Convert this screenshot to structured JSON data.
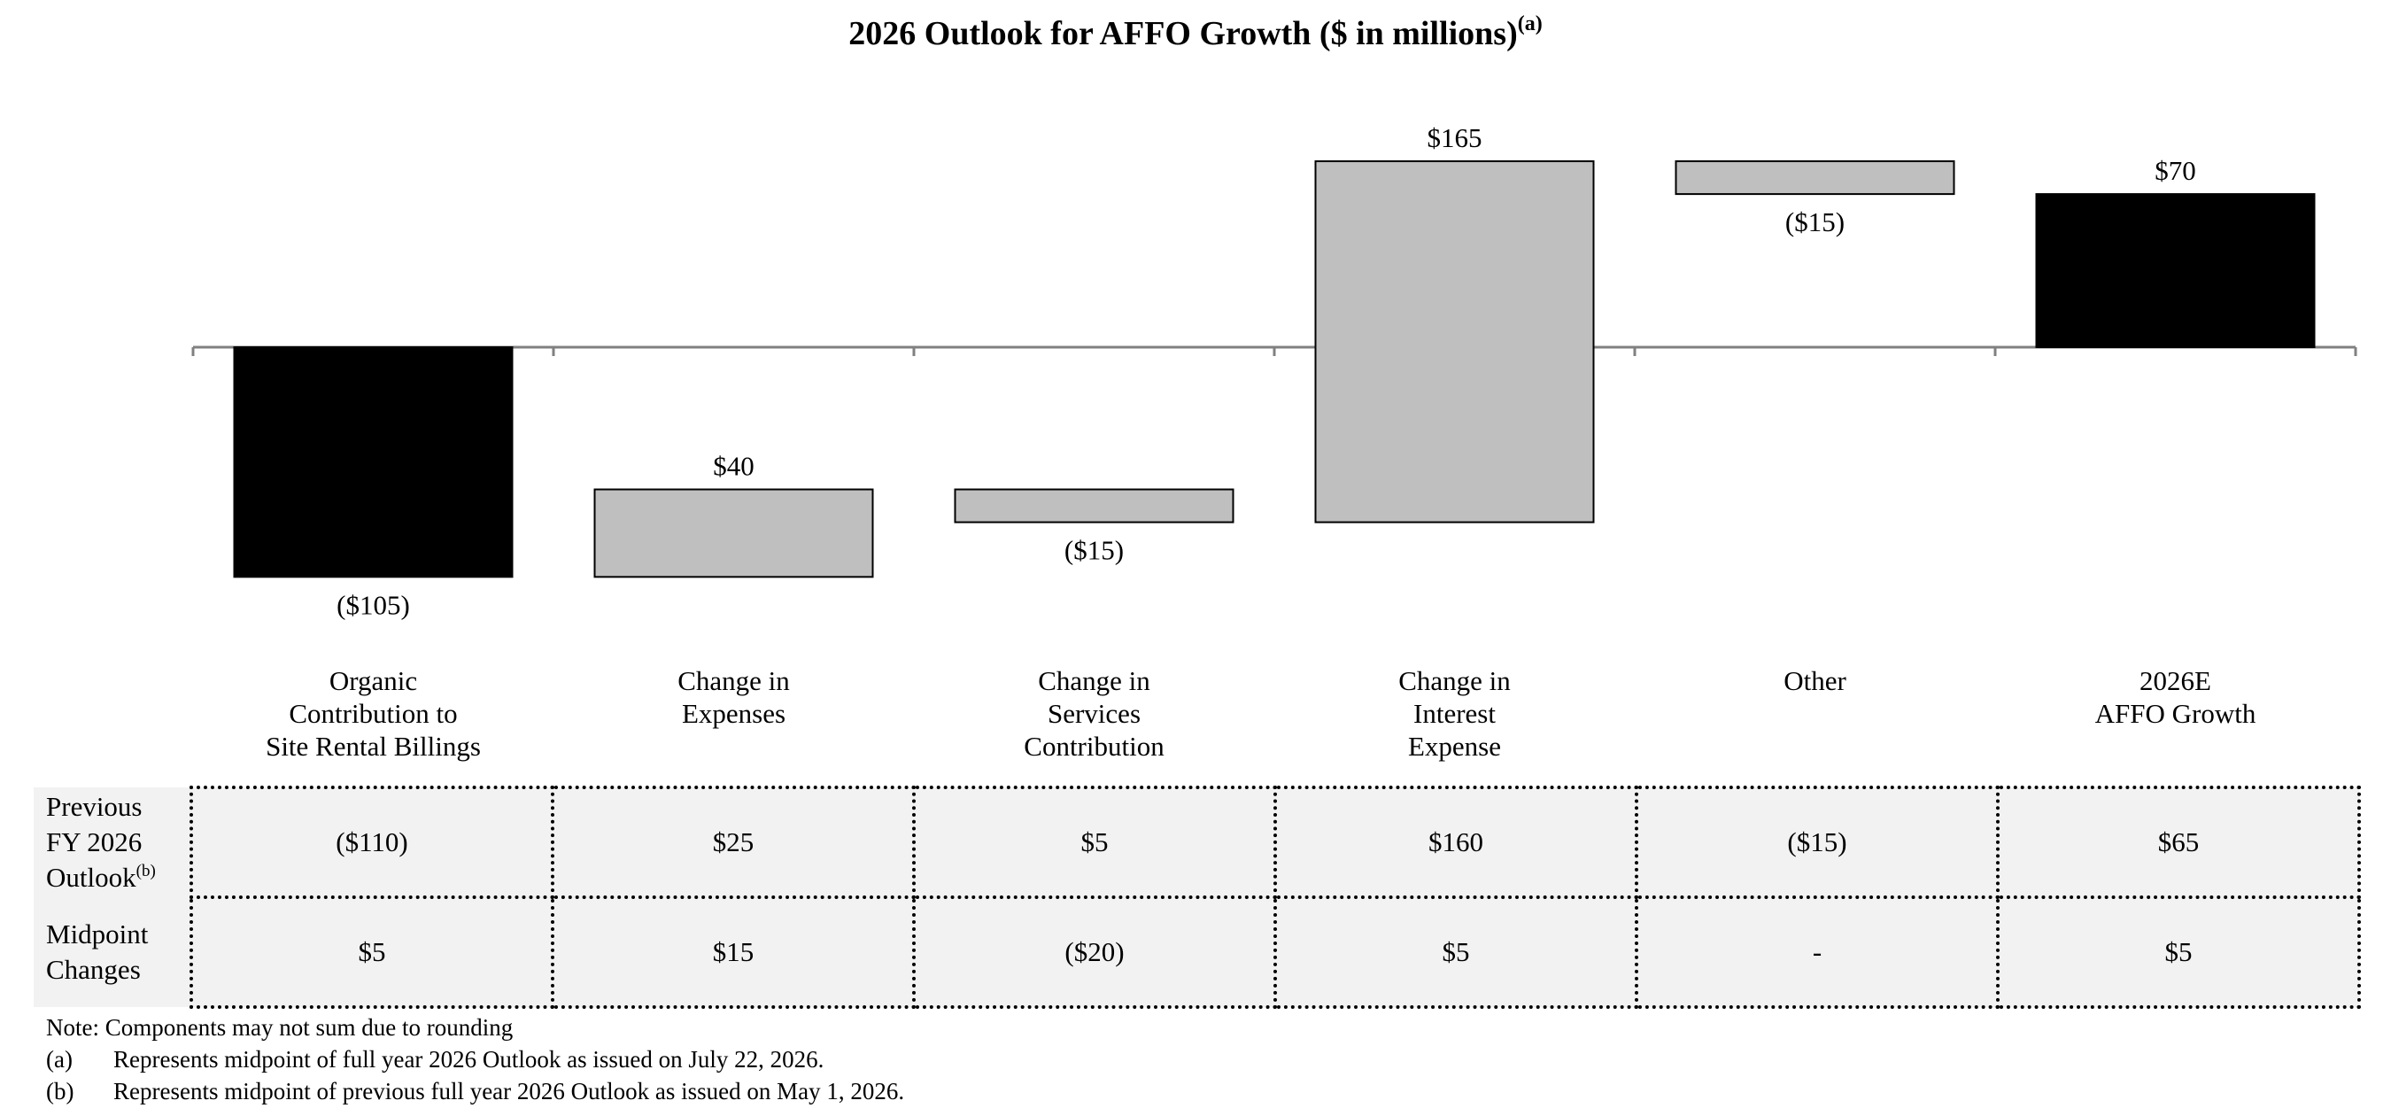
{
  "chart_data": {
    "type": "waterfall",
    "title": "2026 Outlook for AFFO Growth ($ in millions)",
    "title_superscript": "(a)",
    "categories": [
      "Organic\nContribution to\nSite Rental Billings",
      "Change in\nExpenses",
      "Change in\nServices\nContribution",
      "Change in\nInterest\nExpense",
      "Other",
      "2026E\nAFFO Growth"
    ],
    "values": [
      -105,
      40,
      -15,
      165,
      -15,
      70
    ],
    "value_labels": [
      "($105)",
      "$40",
      "($15)",
      "$165",
      "($15)",
      "$70"
    ],
    "bar_kinds": [
      "total",
      "delta",
      "delta",
      "delta",
      "delta",
      "total"
    ],
    "bar_ranges": [
      [
        -105,
        0
      ],
      [
        -105,
        -65
      ],
      [
        -80,
        -65
      ],
      [
        -80,
        85
      ],
      [
        70,
        85
      ],
      [
        0,
        70
      ]
    ],
    "colors": {
      "total": "#000000",
      "delta": "#bfbfbf",
      "axis": "#808080",
      "table_fill": "#f2f2f2"
    },
    "ylim": [
      -120,
      100
    ],
    "grid": false,
    "legend": "none"
  },
  "table": {
    "rows": [
      {
        "label_lines": [
          "Previous",
          "FY 2026",
          "Outlook"
        ],
        "label_superscript": "(b)",
        "values": [
          "($110)",
          "$25",
          "$5",
          "$160",
          "($15)",
          "$65"
        ]
      },
      {
        "label_lines": [
          "Midpoint",
          "Changes"
        ],
        "label_superscript": "",
        "values": [
          "$5",
          "$15",
          "($20)",
          "$5",
          "-",
          "$5"
        ]
      }
    ]
  },
  "notes": {
    "note": "Note: Components may not sum due to rounding",
    "footnotes": [
      {
        "mark": "(a)",
        "text": "Represents midpoint of full year 2026 Outlook as issued on July 22, 2026."
      },
      {
        "mark": "(b)",
        "text": "Represents midpoint of previous full year 2026 Outlook as issued on May 1, 2026."
      }
    ]
  }
}
